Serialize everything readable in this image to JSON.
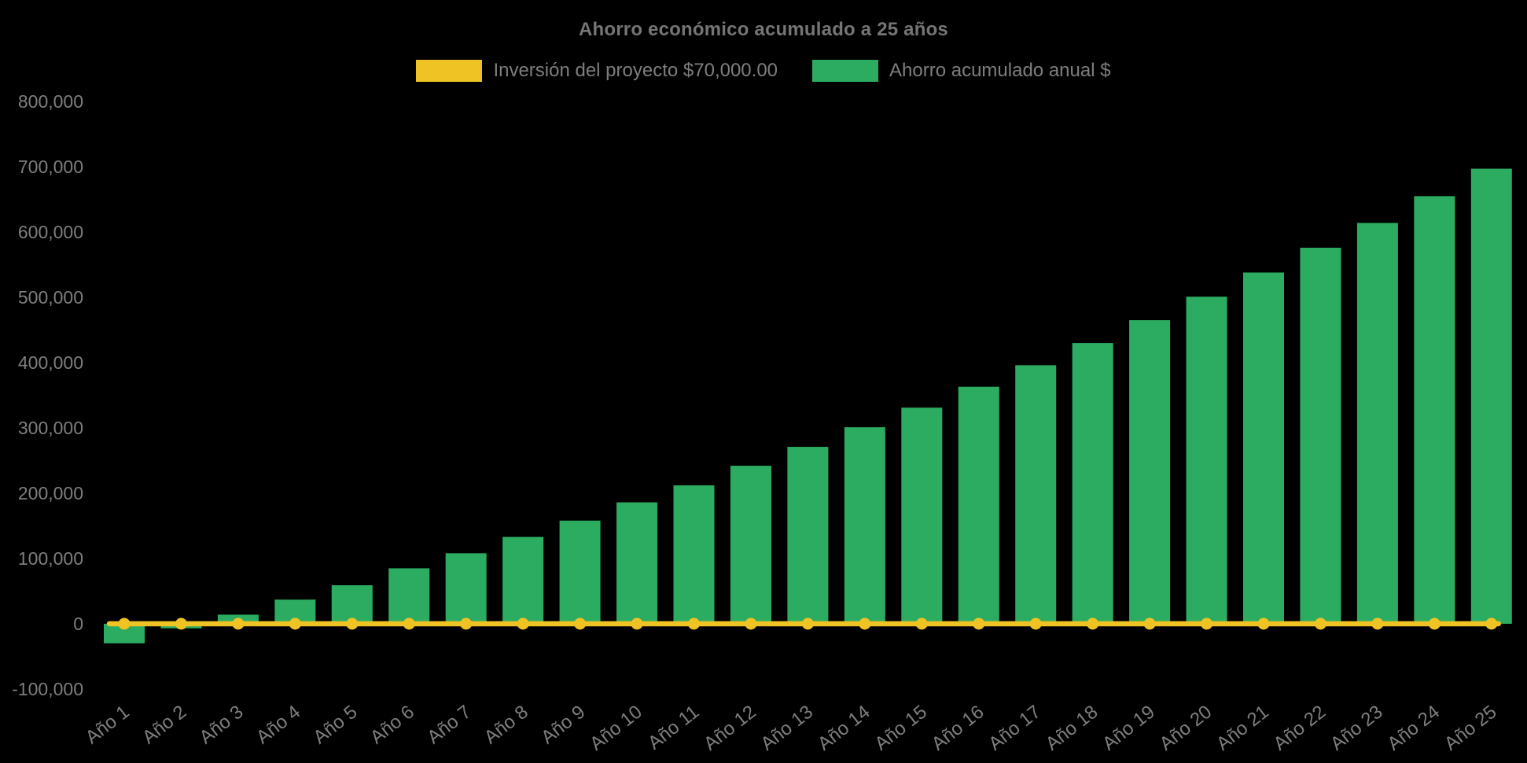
{
  "colors": {
    "background": "#000000",
    "title_text": "#757575",
    "axis_text": "#7E7E7E",
    "legend_text": "#7E7E7E",
    "investment_yellow": "#F0C324",
    "savings_green": "#2BAC61"
  },
  "chart_data": {
    "type": "bar",
    "title": "Ahorro económico acumulado a 25 años",
    "legend_position": "top",
    "grid": false,
    "xlabel": "",
    "ylabel": "",
    "ylim": [
      -100000,
      800000
    ],
    "categories": [
      "Año 1",
      "Año 2",
      "Año 3",
      "Año 4",
      "Año 5",
      "Año 6",
      "Año 7",
      "Año 8",
      "Año 9",
      "Año 10",
      "Año 11",
      "Año 12",
      "Año 13",
      "Año 14",
      "Año 15",
      "Año 16",
      "Año 17",
      "Año 18",
      "Año 19",
      "Año 20",
      "Año 21",
      "Año 22",
      "Año 23",
      "Año 24",
      "Año 25"
    ],
    "series": [
      {
        "name": "Inversión del proyecto $70,000.00",
        "type": "line",
        "color": "#F0C324",
        "point_markers": true,
        "values": [
          0,
          0,
          0,
          0,
          0,
          0,
          0,
          0,
          0,
          0,
          0,
          0,
          0,
          0,
          0,
          0,
          0,
          0,
          0,
          0,
          0,
          0,
          0,
          0,
          0
        ]
      },
      {
        "name": "Ahorro acumulado anual $",
        "type": "bar",
        "color": "#2BAC61",
        "values": [
          -30000,
          -7000,
          14000,
          37000,
          59000,
          85000,
          108000,
          133000,
          158000,
          186000,
          212000,
          242000,
          271000,
          301000,
          331000,
          363000,
          396000,
          430000,
          465000,
          501000,
          538000,
          576000,
          614000,
          655000,
          697000
        ]
      }
    ],
    "y_axis": {
      "ticks": [
        -100000,
        0,
        100000,
        200000,
        300000,
        400000,
        500000,
        600000,
        700000,
        800000
      ],
      "tick_labels": [
        "-100,000",
        "0",
        "100,000",
        "200,000",
        "300,000",
        "400,000",
        "500,000",
        "600,000",
        "700,000",
        "800,000"
      ]
    }
  }
}
